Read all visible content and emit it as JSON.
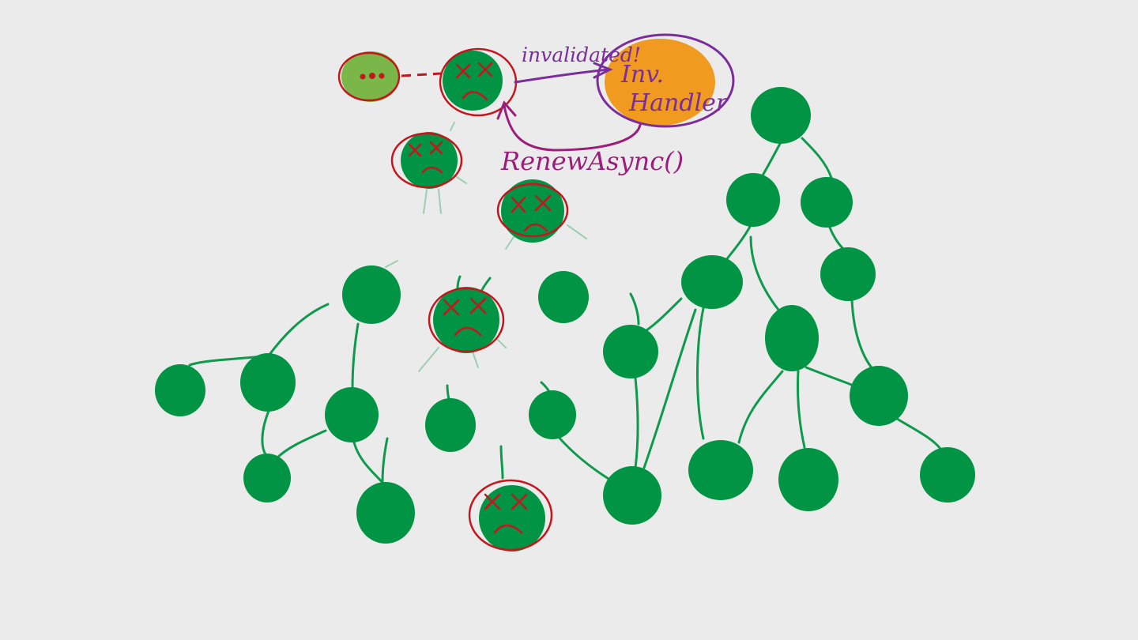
{
  "labels": {
    "invalidated": "invalidated!",
    "handler_line1": "Inv.",
    "handler_line2": "Handler",
    "renew": "RenewAsync()"
  },
  "colors": {
    "background": "#ebebeb",
    "node": "#009444",
    "pending_node": "#7ab648",
    "handler_fill": "#f09a1f",
    "handler_outline": "#7b2d9c",
    "invalid_mark": "#c4161c",
    "renew_arrow": "#9b1f7a",
    "edge": "#0e9a4d"
  },
  "icons": {
    "invalid_face": "x-eyes-sad-face-icon",
    "pending_dots": "ellipsis-icon"
  }
}
